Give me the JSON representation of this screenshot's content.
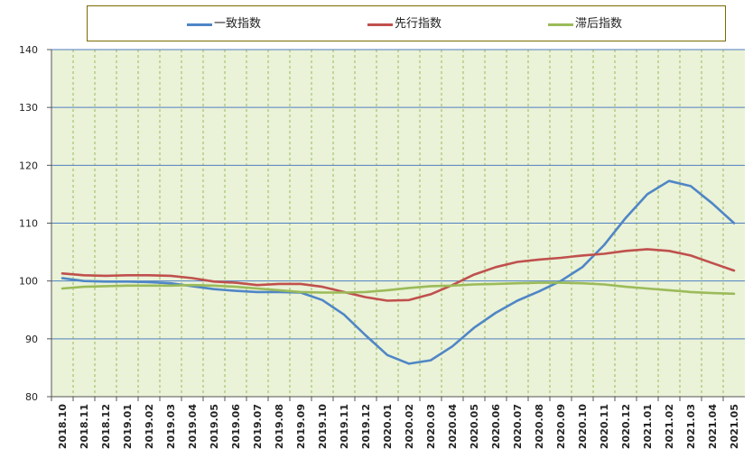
{
  "chart_data": {
    "type": "line",
    "title": "",
    "xlabel": "",
    "ylabel": "",
    "ylim": [
      80,
      140
    ],
    "yticks": [
      80,
      90,
      100,
      110,
      120,
      130,
      140
    ],
    "grid": "on",
    "legend_position": "top",
    "background_color": "#eaf2d8",
    "categories": [
      "2018.10",
      "2018.11",
      "2018.12",
      "2019.01",
      "2019.02",
      "2019.03",
      "2019.04",
      "2019.05",
      "2019.06",
      "2019.07",
      "2019.08",
      "2019.09",
      "2019.10",
      "2019.11",
      "2019.12",
      "2020.01",
      "2020.02",
      "2020.03",
      "2020.04",
      "2020.05",
      "2020.06",
      "2020.07",
      "2020.08",
      "2020.09",
      "2020.10",
      "2020.11",
      "2020.12",
      "2021.01",
      "2021.02",
      "2021.03",
      "2021.04",
      "2021.05"
    ],
    "series": [
      {
        "name": "一致指数",
        "color": "#4f86c6",
        "values": [
          100.5,
          100.0,
          99.9,
          99.9,
          99.8,
          99.6,
          99.1,
          98.6,
          98.3,
          98.1,
          98.1,
          98.0,
          96.7,
          94.2,
          90.6,
          87.2,
          85.7,
          86.3,
          88.7,
          91.9,
          94.5,
          96.6,
          98.2,
          100.0,
          102.4,
          106.2,
          110.9,
          115.0,
          117.3,
          116.4,
          113.4,
          110.0
        ]
      },
      {
        "name": "先行指数",
        "color": "#c0504d",
        "values": [
          101.3,
          101.0,
          100.9,
          101.0,
          101.0,
          100.9,
          100.5,
          99.9,
          99.7,
          99.3,
          99.5,
          99.5,
          99.0,
          98.1,
          97.2,
          96.6,
          96.7,
          97.7,
          99.3,
          101.1,
          102.4,
          103.3,
          103.7,
          104.0,
          104.4,
          104.7,
          105.2,
          105.5,
          105.2,
          104.4,
          103.1,
          101.8
        ]
      },
      {
        "name": "滞后指数",
        "color": "#9bbb59",
        "values": [
          98.7,
          99.0,
          99.1,
          99.2,
          99.2,
          99.2,
          99.3,
          99.2,
          99.0,
          98.7,
          98.4,
          98.1,
          98.0,
          98.0,
          98.1,
          98.4,
          98.8,
          99.1,
          99.2,
          99.4,
          99.5,
          99.6,
          99.7,
          99.7,
          99.6,
          99.4,
          99.0,
          98.7,
          98.4,
          98.1,
          97.9,
          97.8
        ]
      }
    ]
  }
}
